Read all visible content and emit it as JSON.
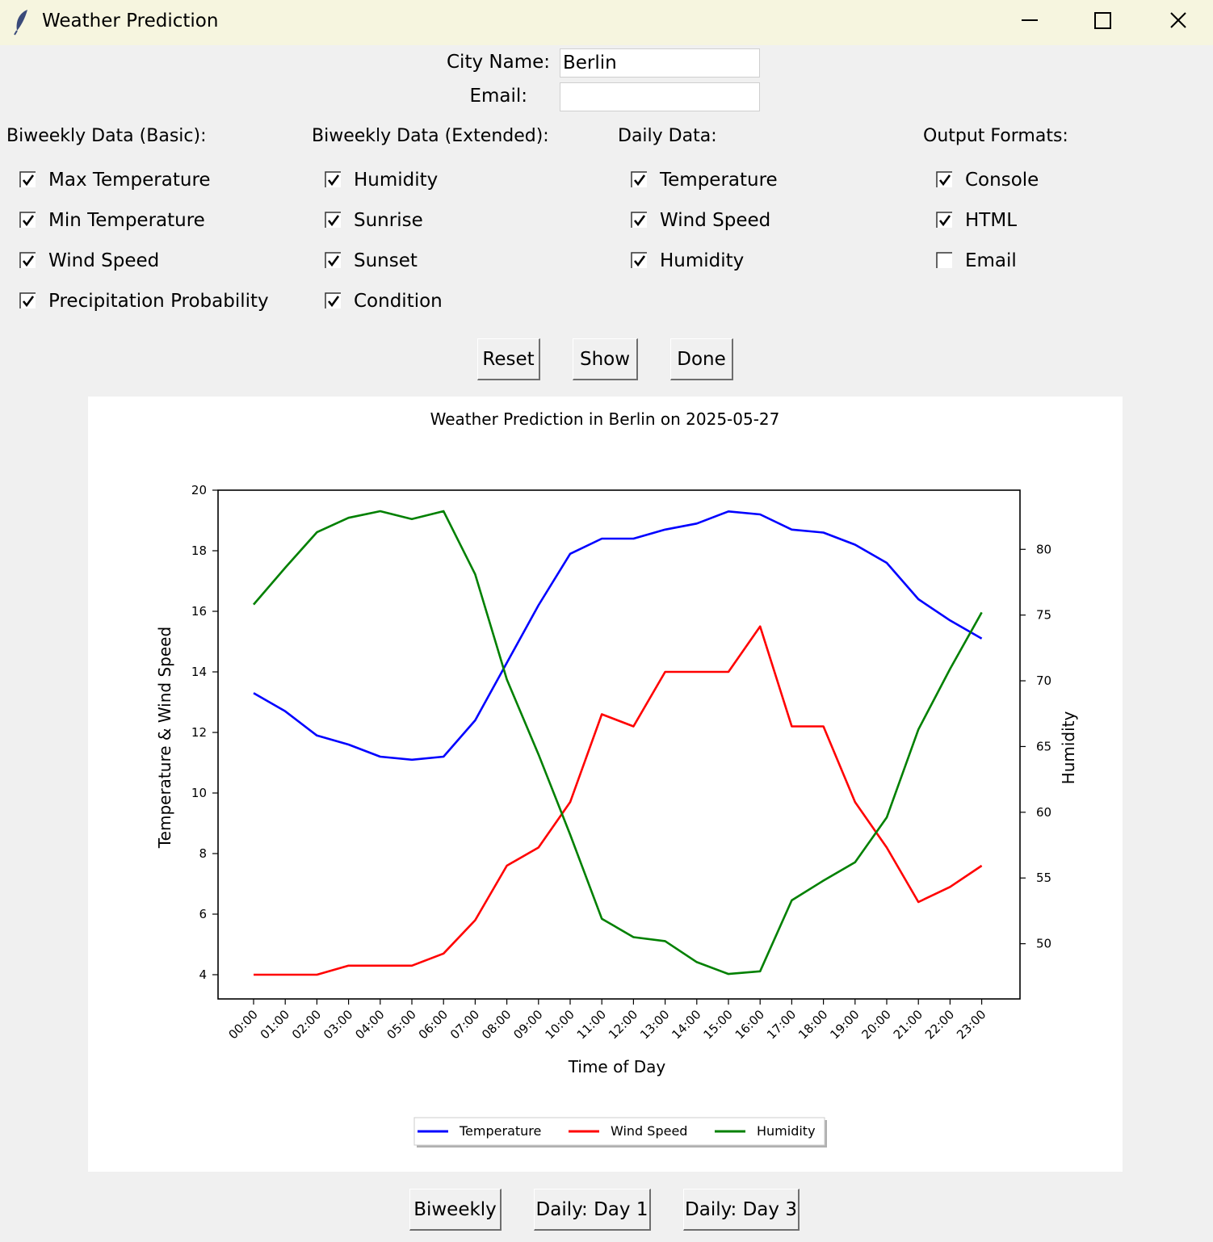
{
  "window": {
    "title": "Weather Prediction",
    "icon": "feather-icon",
    "controls": [
      "minimize-icon",
      "maximize-icon",
      "close-icon"
    ]
  },
  "form": {
    "city_label": "City Name:",
    "city_value": "Berlin",
    "email_label": "Email:",
    "email_value": ""
  },
  "groups": [
    {
      "heading": "Biweekly Data (Basic):",
      "options": [
        {
          "label": "Max Temperature",
          "checked": true
        },
        {
          "label": "Min Temperature",
          "checked": true
        },
        {
          "label": "Wind Speed",
          "checked": true
        },
        {
          "label": "Precipitation Probability",
          "checked": true
        }
      ]
    },
    {
      "heading": "Biweekly Data (Extended):",
      "options": [
        {
          "label": "Humidity",
          "checked": true
        },
        {
          "label": "Sunrise",
          "checked": true
        },
        {
          "label": "Sunset",
          "checked": true
        },
        {
          "label": "Condition",
          "checked": true
        }
      ]
    },
    {
      "heading": "Daily Data:",
      "options": [
        {
          "label": "Temperature",
          "checked": true
        },
        {
          "label": "Wind Speed",
          "checked": true
        },
        {
          "label": "Humidity",
          "checked": true
        }
      ]
    },
    {
      "heading": "Output Formats:",
      "options": [
        {
          "label": "Console",
          "checked": true
        },
        {
          "label": "HTML",
          "checked": true
        },
        {
          "label": "Email",
          "checked": false
        }
      ]
    }
  ],
  "actions": {
    "reset": "Reset",
    "show": "Show",
    "done": "Done"
  },
  "view_buttons": {
    "biweekly": "Biweekly",
    "day1": "Daily: Day 1",
    "day3": "Daily: Day 3"
  },
  "chart_data": {
    "type": "line",
    "title": "Weather Prediction in Berlin on 2025-05-27",
    "xlabel": "Time of Day",
    "ylabel": "Temperature & Wind Speed",
    "ylabel_right": "Humidity",
    "categories": [
      "00:00",
      "01:00",
      "02:00",
      "03:00",
      "04:00",
      "05:00",
      "06:00",
      "07:00",
      "08:00",
      "09:00",
      "10:00",
      "11:00",
      "12:00",
      "13:00",
      "14:00",
      "15:00",
      "16:00",
      "17:00",
      "18:00",
      "19:00",
      "20:00",
      "21:00",
      "22:00",
      "23:00"
    ],
    "ylim": [
      3.2,
      20
    ],
    "yticks": [
      4,
      6,
      8,
      10,
      12,
      14,
      16,
      18,
      20
    ],
    "ylim_right": [
      45.8,
      84.5
    ],
    "yticks_right": [
      50,
      55,
      60,
      65,
      70,
      75,
      80
    ],
    "grid": false,
    "legend_position": "bottom-center",
    "series": [
      {
        "name": "Temperature",
        "axis": "left",
        "color": "#0000ff",
        "values": [
          13.3,
          12.7,
          11.9,
          11.6,
          11.2,
          11.1,
          11.2,
          12.4,
          14.3,
          16.2,
          17.9,
          18.4,
          18.4,
          18.7,
          18.9,
          19.3,
          19.2,
          18.7,
          18.6,
          18.2,
          17.6,
          16.4,
          15.7,
          15.1
        ]
      },
      {
        "name": "Wind Speed",
        "axis": "left",
        "color": "#ff0000",
        "values": [
          4.0,
          4.0,
          4.0,
          4.3,
          4.3,
          4.3,
          4.7,
          5.8,
          7.6,
          8.2,
          9.7,
          12.6,
          12.2,
          14.0,
          14.0,
          14.0,
          15.5,
          12.2,
          12.2,
          9.7,
          8.2,
          6.4,
          6.9,
          7.6
        ]
      },
      {
        "name": "Humidity",
        "axis": "right",
        "color": "#008000",
        "values": [
          75.8,
          78.6,
          81.3,
          82.4,
          82.9,
          82.3,
          82.9,
          78.1,
          70.1,
          64.4,
          58.3,
          51.9,
          50.5,
          50.2,
          48.6,
          47.7,
          47.9,
          53.3,
          54.8,
          56.2,
          59.6,
          66.3,
          70.9,
          75.2
        ]
      }
    ]
  }
}
